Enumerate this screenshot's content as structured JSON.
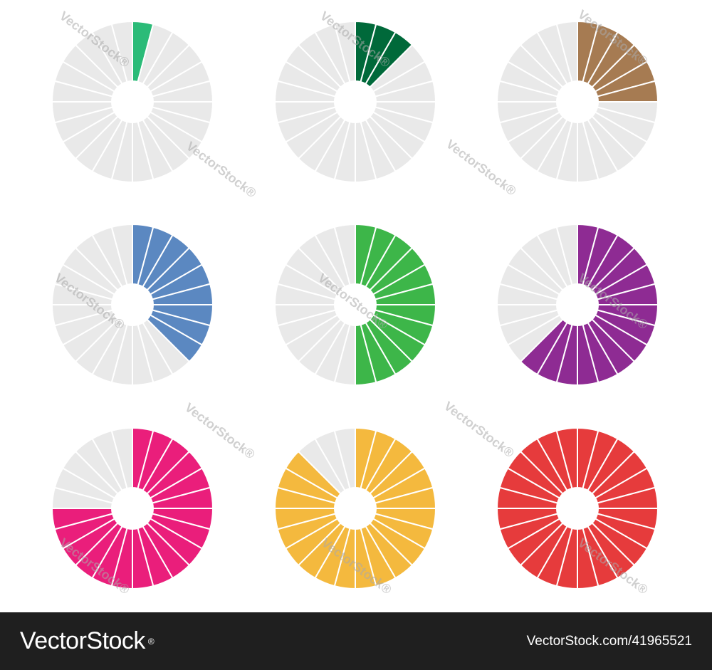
{
  "rings": [
    {
      "color": "#2BBB78",
      "filled_segments": 1,
      "total_segments": 24
    },
    {
      "color": "#00693A",
      "filled_segments": 3,
      "total_segments": 24
    },
    {
      "color": "#A67B52",
      "filled_segments": 6,
      "total_segments": 24
    },
    {
      "color": "#5B88C1",
      "filled_segments": 9,
      "total_segments": 24
    },
    {
      "color": "#3DB649",
      "filled_segments": 12,
      "total_segments": 24
    },
    {
      "color": "#8E2B93",
      "filled_segments": 15,
      "total_segments": 24
    },
    {
      "color": "#EA1E7B",
      "filled_segments": 18,
      "total_segments": 24
    },
    {
      "color": "#F4B93E",
      "filled_segments": 21,
      "total_segments": 24
    },
    {
      "color": "#E63B3C",
      "filled_segments": 24,
      "total_segments": 24
    }
  ],
  "empty_color": "#E9E9E9",
  "watermark": "VectorStock®",
  "footer": {
    "brand": "VectorStock",
    "registered": "®",
    "url": "VectorStock.com/41965521"
  }
}
